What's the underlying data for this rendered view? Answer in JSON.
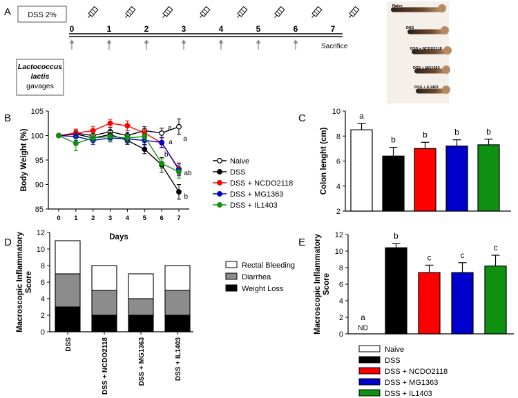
{
  "panel_letters": {
    "a": "A",
    "b": "B",
    "c": "C",
    "d": "D",
    "e": "E"
  },
  "timeline": {
    "treatment_box": "DSS 2%",
    "days": [
      "0",
      "1",
      "2",
      "3",
      "4",
      "5",
      "6",
      "7"
    ],
    "bottle_days": [
      0,
      1,
      2,
      3,
      4,
      5,
      6,
      7
    ],
    "gavage_days": [
      0,
      1,
      2,
      3,
      4,
      5,
      6
    ],
    "gavage_label": [
      "Lactococcus",
      "lactis",
      "gavages"
    ],
    "sacrifice_label": "Sacrifice"
  },
  "colon_photo": {
    "labels": [
      "Naive",
      "DSS",
      "DSS + NCDO2118",
      "DSS + MG1363",
      "DSS + IL1403"
    ]
  },
  "colors": {
    "naive": "#ffffff",
    "dss": "#000000",
    "ncdo2118": "#ff0000",
    "mg1363": "#0000cc",
    "il1403": "#109010",
    "bleeding": "#ffffff",
    "diarrhea": "#8c8c8c",
    "weight_loss": "#000000"
  },
  "chart_data": [
    {
      "id": "B",
      "type": "line",
      "xlabel": "Days",
      "ylabel": "Body Weight (%)",
      "x": [
        0,
        1,
        2,
        3,
        4,
        5,
        6,
        7
      ],
      "xticks": [
        "0",
        "1",
        "2",
        "3",
        "4",
        "5",
        "6",
        "7"
      ],
      "ylim": [
        85,
        105
      ],
      "yticks": [
        "85",
        "90",
        "95",
        "100",
        "105"
      ],
      "series": [
        {
          "name": "Naive",
          "key": "naive",
          "values": [
            100,
            100.5,
            100,
            100.8,
            100,
            101,
            100.5,
            101.8
          ],
          "errors": [
            0.3,
            0.8,
            0.8,
            0.8,
            0.7,
            0.8,
            1.0,
            1.6
          ]
        },
        {
          "name": "DSS",
          "key": "dss",
          "values": [
            100,
            100.3,
            99.5,
            100.2,
            99.0,
            97.2,
            94.0,
            88.5
          ],
          "errors": [
            0.3,
            0.7,
            0.8,
            0.8,
            0.8,
            0.9,
            1.5,
            1.5
          ]
        },
        {
          "name": "DSS + NCDO2118",
          "key": "ncdo2118",
          "values": [
            100,
            100.5,
            101,
            102.5,
            102,
            100.5,
            98.5,
            93.2
          ],
          "errors": [
            0.3,
            0.8,
            0.8,
            0.8,
            1.0,
            0.8,
            1.0,
            1.2
          ]
        },
        {
          "name": "DSS + MG1363",
          "key": "mg1363",
          "values": [
            100,
            99.8,
            99,
            99.5,
            99.3,
            99,
            98.6,
            93.0
          ],
          "errors": [
            0.3,
            0.8,
            0.8,
            0.8,
            0.8,
            0.8,
            1.0,
            1.2
          ]
        },
        {
          "name": "DSS + IL1403",
          "key": "il1403",
          "values": [
            100,
            98.4,
            99.5,
            99.8,
            99.5,
            99.8,
            94.3,
            92.6
          ],
          "errors": [
            0.3,
            1.5,
            0.8,
            0.8,
            0.8,
            0.8,
            1.0,
            1.3
          ]
        }
      ],
      "annotations": [
        {
          "text": "a",
          "day": 6.35,
          "y": 101.7
        },
        {
          "text": "a",
          "day": 7.25,
          "y": 99.5
        },
        {
          "text": "a",
          "day": 6.4,
          "y": 98.8
        },
        {
          "text": "b",
          "day": 6.15,
          "y": 96.3
        },
        {
          "text": "ab",
          "day": 7.3,
          "y": 92.5
        },
        {
          "text": "b",
          "day": 7.3,
          "y": 87.7
        }
      ]
    },
    {
      "id": "C",
      "type": "bar",
      "ylabel": "Colon lenght (cm)",
      "ylim": [
        2,
        10
      ],
      "yticks": [
        "2",
        "4",
        "6",
        "8",
        "10"
      ],
      "categories": [
        "Naive",
        "DSS",
        "DSS + NCDO2118",
        "DSS + MG1363",
        "DSS + IL1403"
      ],
      "keys": [
        "naive",
        "dss",
        "ncdo2118",
        "mg1363",
        "il1403"
      ],
      "values": [
        8.5,
        6.4,
        7.0,
        7.2,
        7.3
      ],
      "errors": [
        0.5,
        0.7,
        0.5,
        0.5,
        0.45
      ],
      "sig_labels": [
        "a",
        "b",
        "b",
        "b",
        "b"
      ]
    },
    {
      "id": "D",
      "type": "bar",
      "stacked": true,
      "ylabel": "Macroscopic Inflammatory Score",
      "ylim": [
        0,
        12
      ],
      "yticks": [
        "0",
        "2",
        "4",
        "6",
        "8",
        "10",
        "12"
      ],
      "categories": [
        "DSS",
        "DSS + NCDO2118",
        "DSS + MG1363",
        "DSS + IL1403"
      ],
      "series": [
        {
          "name": "Weight Loss",
          "key": "weight_loss",
          "values": [
            3,
            2,
            2,
            2
          ]
        },
        {
          "name": "Diarrhea",
          "key": "diarrhea",
          "values": [
            4,
            3,
            2,
            3
          ]
        },
        {
          "name": "Rectal Bleeding",
          "key": "bleeding",
          "values": [
            4,
            3,
            3,
            3
          ]
        }
      ],
      "legend": [
        "Rectal Bleeding",
        "Diarrhea",
        "Weight Loss"
      ]
    },
    {
      "id": "E",
      "type": "bar",
      "ylabel": "Macroscopic Inflammatory Score",
      "ylim": [
        0,
        12
      ],
      "yticks": [
        "0",
        "2",
        "4",
        "6",
        "8",
        "10",
        "12"
      ],
      "categories": [
        "Naive",
        "DSS",
        "DSS + NCDO2118",
        "DSS + MG1363",
        "DSS + IL1403"
      ],
      "keys": [
        "naive",
        "dss",
        "ncdo2118",
        "mg1363",
        "il1403"
      ],
      "values": [
        0,
        10.4,
        7.4,
        7.4,
        8.2
      ],
      "errors": [
        0,
        0.5,
        0.9,
        1.2,
        1.3
      ],
      "sig_labels": [
        "a",
        "b",
        "c",
        "c",
        "c"
      ],
      "nd_label": "ND"
    }
  ]
}
